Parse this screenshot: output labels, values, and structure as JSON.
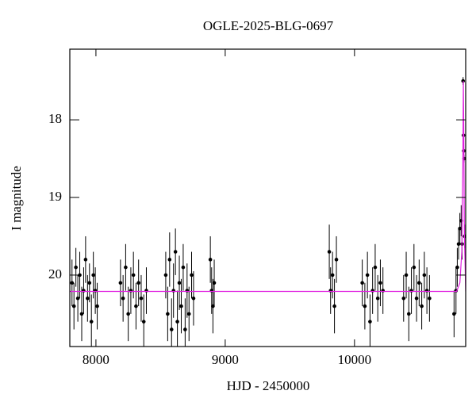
{
  "chart_data": {
    "type": "scatter",
    "title": "OGLE-2025-BLG-0697",
    "x_label": "HJD - 2450000",
    "y_label": "I magnitude",
    "xlim": [
      7798,
      10860
    ],
    "ylim": [
      20.92,
      17.09
    ],
    "xticks": [
      8000,
      9000,
      10000
    ],
    "yticks": [
      18,
      19,
      20
    ],
    "series": [
      {
        "color": "#000000",
        "style": "points",
        "x": [
          7815,
          7830,
          7845,
          7860,
          7875,
          7890,
          7905,
          7920,
          7935,
          7950,
          7965,
          7980,
          7995,
          8010,
          8190,
          8210,
          8230,
          8250,
          8270,
          8290,
          8310,
          8330,
          8350,
          8370,
          8390,
          8540,
          8555,
          8570,
          8585,
          8600,
          8615,
          8630,
          8645,
          8660,
          8675,
          8690,
          8705,
          8720,
          8740,
          8755,
          8885,
          8895,
          8905,
          8915,
          9805,
          9815,
          9830,
          9845,
          9860,
          10060,
          10080,
          10100,
          10120,
          10140,
          10160,
          10180,
          10200,
          10220,
          10380,
          10400,
          10420,
          10440,
          10460,
          10480,
          10500,
          10520,
          10540,
          10560,
          10580,
          10770,
          10785,
          10795,
          10805,
          10815,
          10825,
          10832,
          10840,
          10843,
          10845,
          10848,
          10852
        ],
        "values": [
          20.1,
          20.4,
          19.9,
          20.3,
          20.0,
          20.5,
          20.2,
          19.8,
          20.3,
          20.1,
          20.6,
          20.0,
          20.2,
          20.4,
          20.1,
          20.3,
          19.9,
          20.5,
          20.2,
          20.0,
          20.4,
          20.1,
          20.3,
          20.6,
          20.2,
          20.0,
          20.5,
          19.8,
          20.7,
          20.2,
          19.7,
          20.6,
          20.1,
          20.4,
          19.9,
          20.7,
          20.2,
          20.5,
          20.0,
          20.3,
          19.8,
          20.2,
          20.4,
          20.1,
          19.7,
          20.2,
          20.0,
          20.4,
          19.8,
          20.1,
          20.4,
          20.0,
          20.6,
          20.2,
          19.9,
          20.3,
          20.1,
          20.2,
          20.3,
          20.0,
          20.5,
          20.2,
          19.9,
          20.3,
          20.1,
          20.4,
          20.0,
          20.2,
          20.3,
          20.5,
          20.2,
          19.9,
          19.6,
          19.4,
          19.3,
          19.6,
          17.5,
          18.2,
          18.4,
          18.5,
          19.5
        ],
        "errors": [
          0.3,
          0.3,
          0.25,
          0.3,
          0.3,
          0.35,
          0.3,
          0.3,
          0.3,
          0.25,
          0.35,
          0.3,
          0.3,
          0.3,
          0.3,
          0.3,
          0.3,
          0.35,
          0.3,
          0.3,
          0.3,
          0.3,
          0.3,
          0.35,
          0.3,
          0.3,
          0.35,
          0.35,
          0.4,
          0.35,
          0.3,
          0.4,
          0.35,
          0.35,
          0.3,
          0.4,
          0.35,
          0.35,
          0.3,
          0.35,
          0.3,
          0.3,
          0.35,
          0.3,
          0.35,
          0.3,
          0.3,
          0.35,
          0.3,
          0.3,
          0.3,
          0.3,
          0.35,
          0.3,
          0.3,
          0.3,
          0.3,
          0.3,
          0.3,
          0.3,
          0.35,
          0.3,
          0.3,
          0.3,
          0.3,
          0.3,
          0.3,
          0.3,
          0.3,
          0.3,
          0.3,
          0.25,
          0.2,
          0.2,
          0.2,
          0.2,
          0.05,
          0.05,
          0.05,
          0.05,
          0.15
        ]
      },
      {
        "color": "#e020e0",
        "style": "line",
        "x": [
          7798,
          10790,
          10815,
          10830,
          10838,
          10842,
          10846,
          10850,
          10860
        ],
        "values": [
          20.21,
          20.21,
          20.1,
          19.7,
          18.6,
          17.5,
          18.3,
          19.5,
          20.21
        ]
      }
    ]
  }
}
